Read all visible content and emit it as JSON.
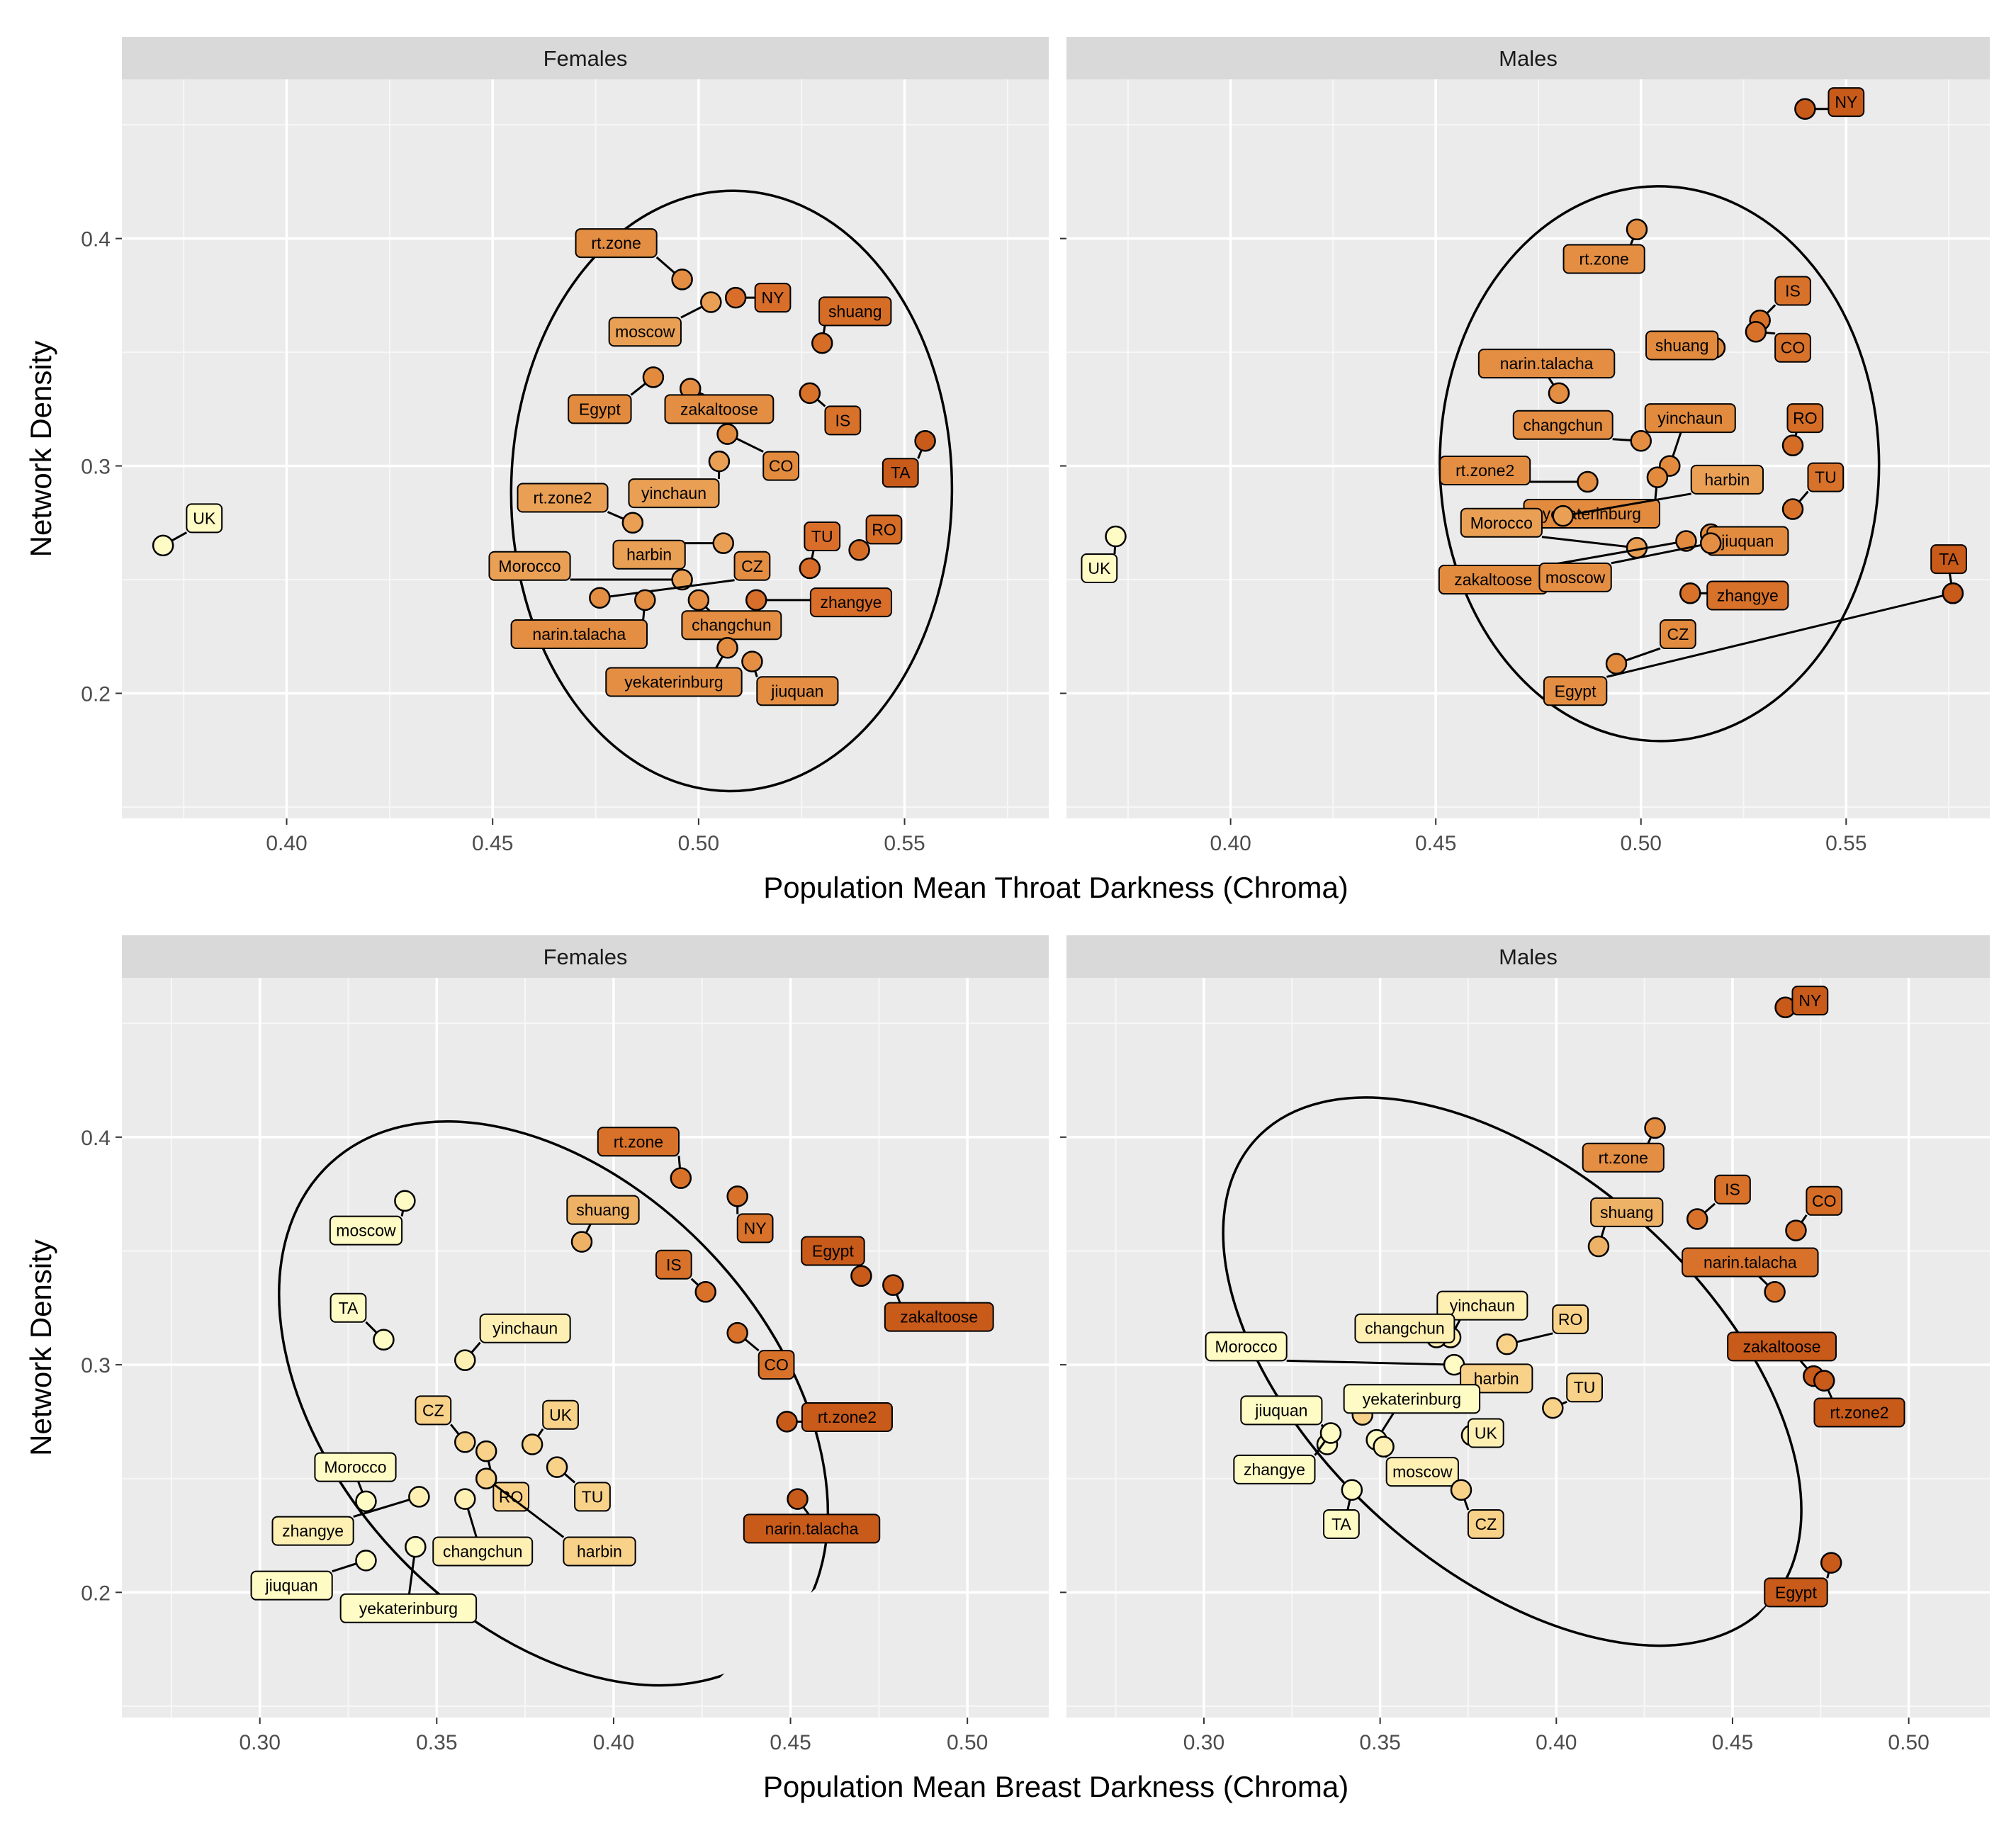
{
  "figure": {
    "rows": [
      {
        "xlabel": "Population Mean Throat Darkness (Chroma)",
        "ylabel": "Network Density"
      },
      {
        "xlabel": "Population Mean Breast Darkness (Chroma)",
        "ylabel": "Network Density"
      }
    ]
  },
  "chart_data": [
    {
      "type": "scatter",
      "strip": "Females",
      "xlabel": "Population Mean Throat Darkness (Chroma)",
      "ylabel": "Network Density",
      "xlim": [
        0.36,
        0.585
      ],
      "ylim": [
        0.145,
        0.47
      ],
      "xticks": [
        {
          "v": 0.4,
          "label": "0.40"
        },
        {
          "v": 0.45,
          "label": "0.45"
        },
        {
          "v": 0.5,
          "label": "0.50"
        },
        {
          "v": 0.55,
          "label": "0.55"
        }
      ],
      "yticks": [
        {
          "v": 0.2,
          "label": "0.2"
        },
        {
          "v": 0.3,
          "label": "0.3"
        },
        {
          "v": 0.4,
          "label": "0.4"
        }
      ],
      "grid": true,
      "ellipse": {
        "cx": 0.508,
        "cy": 0.289,
        "rx": 0.0535,
        "ry": 0.132,
        "angle": -0.6
      },
      "points": [
        {
          "label": "UK",
          "x": 0.37,
          "y": 0.265,
          "color": "#FFFBC5",
          "lx": 0.38,
          "ly": 0.277
        },
        {
          "label": "rt.zone",
          "x": 0.496,
          "y": 0.382,
          "color": "#E38E43",
          "lx": 0.48,
          "ly": 0.398
        },
        {
          "label": "moscow",
          "x": 0.503,
          "y": 0.372,
          "color": "#E9A055",
          "lx": 0.487,
          "ly": 0.359
        },
        {
          "label": "NY",
          "x": 0.509,
          "y": 0.374,
          "color": "#D96E2B",
          "lx": 0.518,
          "ly": 0.374
        },
        {
          "label": "shuang",
          "x": 0.53,
          "y": 0.354,
          "color": "#D56D26",
          "lx": 0.538,
          "ly": 0.368
        },
        {
          "label": "Egypt",
          "x": 0.489,
          "y": 0.339,
          "color": "#E28B3E",
          "lx": 0.476,
          "ly": 0.325
        },
        {
          "label": "zakaltoose",
          "x": 0.498,
          "y": 0.334,
          "color": "#E38E43",
          "lx": 0.505,
          "ly": 0.325
        },
        {
          "label": "IS",
          "x": 0.527,
          "y": 0.332,
          "color": "#D8722A",
          "lx": 0.535,
          "ly": 0.32
        },
        {
          "label": "CO",
          "x": 0.507,
          "y": 0.314,
          "color": "#E28B3E",
          "lx": 0.52,
          "ly": 0.3
        },
        {
          "label": "TA",
          "x": 0.555,
          "y": 0.311,
          "color": "#C85A1A",
          "lx": 0.549,
          "ly": 0.297
        },
        {
          "label": "yinchaun",
          "x": 0.505,
          "y": 0.302,
          "color": "#E9A055",
          "lx": 0.494,
          "ly": 0.288
        },
        {
          "label": "rt.zone2",
          "x": 0.484,
          "y": 0.275,
          "color": "#E9A055",
          "lx": 0.467,
          "ly": 0.286
        },
        {
          "label": "harbin",
          "x": 0.506,
          "y": 0.266,
          "color": "#E9A055",
          "lx": 0.488,
          "ly": 0.261
        },
        {
          "label": "RO",
          "x": 0.539,
          "y": 0.263,
          "color": "#D56D26",
          "lx": 0.545,
          "ly": 0.272
        },
        {
          "label": "TU",
          "x": 0.527,
          "y": 0.255,
          "color": "#D96E2B",
          "lx": 0.53,
          "ly": 0.269
        },
        {
          "label": "Morocco",
          "x": 0.496,
          "y": 0.25,
          "color": "#E9A055",
          "lx": 0.459,
          "ly": 0.256
        },
        {
          "label": "CZ",
          "x": 0.476,
          "y": 0.242,
          "color": "#E38E43",
          "lx": 0.513,
          "ly": 0.256
        },
        {
          "label": "narin.talacha",
          "x": 0.487,
          "y": 0.241,
          "color": "#E38E43",
          "lx": 0.471,
          "ly": 0.226
        },
        {
          "label": "changchun",
          "x": 0.5,
          "y": 0.241,
          "color": "#E38E43",
          "lx": 0.508,
          "ly": 0.23
        },
        {
          "label": "zhangye",
          "x": 0.514,
          "y": 0.241,
          "color": "#D96E2B",
          "lx": 0.537,
          "ly": 0.24
        },
        {
          "label": "yekaterinburg",
          "x": 0.507,
          "y": 0.22,
          "color": "#E38E43",
          "lx": 0.494,
          "ly": 0.205
        },
        {
          "label": "jiuquan",
          "x": 0.513,
          "y": 0.214,
          "color": "#E38E43",
          "lx": 0.524,
          "ly": 0.201
        }
      ]
    },
    {
      "type": "scatter",
      "strip": "Males",
      "xlabel": "Population Mean Throat Darkness (Chroma)",
      "ylabel": "Network Density",
      "xlim": [
        0.36,
        0.585
      ],
      "ylim": [
        0.145,
        0.47
      ],
      "xticks": [
        {
          "v": 0.4,
          "label": "0.40"
        },
        {
          "v": 0.45,
          "label": "0.45"
        },
        {
          "v": 0.5,
          "label": "0.50"
        },
        {
          "v": 0.55,
          "label": "0.55"
        }
      ],
      "yticks": [
        {
          "v": 0.2,
          "label": "0.2"
        },
        {
          "v": 0.3,
          "label": "0.3"
        },
        {
          "v": 0.4,
          "label": "0.4"
        }
      ],
      "grid": true,
      "ellipse": {
        "cx": 0.5045,
        "cy": 0.301,
        "rx": 0.0535,
        "ry": 0.122,
        "angle": 0.5
      },
      "points": [
        {
          "label": "NY",
          "x": 0.54,
          "y": 0.457,
          "color": "#C85A1A",
          "lx": 0.55,
          "ly": 0.46
        },
        {
          "label": "rt.zone",
          "x": 0.499,
          "y": 0.404,
          "color": "#E38E43",
          "lx": 0.491,
          "ly": 0.391
        },
        {
          "label": "IS",
          "x": 0.529,
          "y": 0.364,
          "color": "#D8722A",
          "lx": 0.537,
          "ly": 0.377
        },
        {
          "label": "CO",
          "x": 0.528,
          "y": 0.359,
          "color": "#D8722A",
          "lx": 0.537,
          "ly": 0.352
        },
        {
          "label": "shuang",
          "x": 0.518,
          "y": 0.352,
          "color": "#E28B3E",
          "lx": 0.51,
          "ly": 0.353
        },
        {
          "label": "narin.talacha",
          "x": 0.48,
          "y": 0.332,
          "color": "#E38E43",
          "lx": 0.477,
          "ly": 0.345
        },
        {
          "label": "changchun",
          "x": 0.5,
          "y": 0.311,
          "color": "#E38E43",
          "lx": 0.481,
          "ly": 0.318
        },
        {
          "label": "yinchaun",
          "x": 0.507,
          "y": 0.3,
          "color": "#E28B3E",
          "lx": 0.512,
          "ly": 0.321
        },
        {
          "label": "RO",
          "x": 0.537,
          "y": 0.309,
          "color": "#D56D26",
          "lx": 0.54,
          "ly": 0.321
        },
        {
          "label": "rt.zone2",
          "x": 0.487,
          "y": 0.293,
          "color": "#E38E43",
          "lx": 0.462,
          "ly": 0.298
        },
        {
          "label": "yekaterinburg",
          "x": 0.504,
          "y": 0.295,
          "color": "#E28B3E",
          "lx": 0.488,
          "ly": 0.279
        },
        {
          "label": "harbin",
          "x": 0.481,
          "y": 0.278,
          "color": "#E9A055",
          "lx": 0.521,
          "ly": 0.294
        },
        {
          "label": "TU",
          "x": 0.537,
          "y": 0.281,
          "color": "#D8722A",
          "lx": 0.545,
          "ly": 0.295
        },
        {
          "label": "Morocco",
          "x": 0.499,
          "y": 0.264,
          "color": "#E9A055",
          "lx": 0.466,
          "ly": 0.275
        },
        {
          "label": "jiuquan",
          "x": 0.517,
          "y": 0.27,
          "color": "#E28B3E",
          "lx": 0.526,
          "ly": 0.267
        },
        {
          "label": "zakaltoose",
          "x": 0.511,
          "y": 0.267,
          "color": "#E28B3E",
          "lx": 0.464,
          "ly": 0.25
        },
        {
          "label": "moscow",
          "x": 0.517,
          "y": 0.266,
          "color": "#E38E43",
          "lx": 0.484,
          "ly": 0.251
        },
        {
          "label": "zhangye",
          "x": 0.512,
          "y": 0.244,
          "color": "#D8722A",
          "lx": 0.526,
          "ly": 0.243
        },
        {
          "label": "CZ",
          "x": 0.494,
          "y": 0.213,
          "color": "#E28B3E",
          "lx": 0.509,
          "ly": 0.226
        },
        {
          "label": "Egypt",
          "x": 0.576,
          "y": 0.244,
          "color": "#E38E43",
          "lx": 0.484,
          "ly": 0.201
        },
        {
          "label": "UK",
          "x": 0.372,
          "y": 0.269,
          "color": "#FFFBC5",
          "lx": 0.368,
          "ly": 0.255
        },
        {
          "label": "TA",
          "x": 0.576,
          "y": 0.244,
          "color": "#C85A1A",
          "lx": 0.575,
          "ly": 0.259
        }
      ]
    },
    {
      "type": "scatter",
      "strip": "Females",
      "xlabel": "Population Mean Breast Darkness (Chroma)",
      "ylabel": "Network Density",
      "xlim": [
        0.261,
        0.523
      ],
      "ylim": [
        0.145,
        0.47
      ],
      "xticks": [
        {
          "v": 0.3,
          "label": "0.30"
        },
        {
          "v": 0.35,
          "label": "0.35"
        },
        {
          "v": 0.4,
          "label": "0.40"
        },
        {
          "v": 0.45,
          "label": "0.45"
        },
        {
          "v": 0.5,
          "label": "0.50"
        }
      ],
      "yticks": [
        {
          "v": 0.2,
          "label": "0.2"
        },
        {
          "v": 0.3,
          "label": "0.3"
        },
        {
          "v": 0.4,
          "label": "0.4"
        }
      ],
      "grid": true,
      "ellipse": {
        "cx": 0.383,
        "cy": 0.283,
        "rx": 0.0615,
        "ry": 0.144,
        "angle": 43
      },
      "points": [
        {
          "label": "moscow",
          "x": 0.341,
          "y": 0.372,
          "color": "#FFFBC5",
          "lx": 0.33,
          "ly": 0.359
        },
        {
          "label": "rt.zone",
          "x": 0.419,
          "y": 0.382,
          "color": "#D8722A",
          "lx": 0.407,
          "ly": 0.398
        },
        {
          "label": "shuang",
          "x": 0.391,
          "y": 0.354,
          "color": "#EDB266",
          "lx": 0.397,
          "ly": 0.368
        },
        {
          "label": "NY",
          "x": 0.435,
          "y": 0.374,
          "color": "#D8722A",
          "lx": 0.44,
          "ly": 0.36
        },
        {
          "label": "Egypt",
          "x": 0.47,
          "y": 0.339,
          "color": "#C85A1A",
          "lx": 0.462,
          "ly": 0.35
        },
        {
          "label": "zakaltoose",
          "x": 0.479,
          "y": 0.335,
          "color": "#C85A1A",
          "lx": 0.492,
          "ly": 0.321
        },
        {
          "label": "IS",
          "x": 0.426,
          "y": 0.332,
          "color": "#D8722A",
          "lx": 0.417,
          "ly": 0.344
        },
        {
          "label": "TA",
          "x": 0.335,
          "y": 0.311,
          "color": "#FFFBC5",
          "lx": 0.325,
          "ly": 0.325
        },
        {
          "label": "yinchaun",
          "x": 0.358,
          "y": 0.302,
          "color": "#FEEFB3",
          "lx": 0.375,
          "ly": 0.316
        },
        {
          "label": "CO",
          "x": 0.435,
          "y": 0.314,
          "color": "#D8722A",
          "lx": 0.446,
          "ly": 0.3
        },
        {
          "label": "CZ",
          "x": 0.358,
          "y": 0.266,
          "color": "#F9D28A",
          "lx": 0.349,
          "ly": 0.28
        },
        {
          "label": "UK",
          "x": 0.377,
          "y": 0.265,
          "color": "#F9D28A",
          "lx": 0.385,
          "ly": 0.278
        },
        {
          "label": "rt.zone2",
          "x": 0.449,
          "y": 0.275,
          "color": "#C85A1A",
          "lx": 0.466,
          "ly": 0.277
        },
        {
          "label": "RO",
          "x": 0.364,
          "y": 0.262,
          "color": "#F9D28A",
          "lx": 0.371,
          "ly": 0.242
        },
        {
          "label": "Morocco",
          "x": 0.33,
          "y": 0.24,
          "color": "#FFFBC5",
          "lx": 0.327,
          "ly": 0.255
        },
        {
          "label": "TU",
          "x": 0.384,
          "y": 0.255,
          "color": "#F9D28A",
          "lx": 0.394,
          "ly": 0.242
        },
        {
          "label": "harbin",
          "x": 0.364,
          "y": 0.25,
          "color": "#F9D28A",
          "lx": 0.396,
          "ly": 0.218
        },
        {
          "label": "zhangye",
          "x": 0.345,
          "y": 0.242,
          "color": "#FEEFB3",
          "lx": 0.315,
          "ly": 0.227
        },
        {
          "label": "changchun",
          "x": 0.358,
          "y": 0.241,
          "color": "#FEEFB3",
          "lx": 0.363,
          "ly": 0.218
        },
        {
          "label": "narin.talacha",
          "x": 0.452,
          "y": 0.241,
          "color": "#C85A1A",
          "lx": 0.456,
          "ly": 0.228
        },
        {
          "label": "jiuquan",
          "x": 0.33,
          "y": 0.214,
          "color": "#FFFBC5",
          "lx": 0.309,
          "ly": 0.203
        },
        {
          "label": "yekaterinburg",
          "x": 0.344,
          "y": 0.22,
          "color": "#FFFBC5",
          "lx": 0.342,
          "ly": 0.193
        }
      ]
    },
    {
      "type": "scatter",
      "strip": "Males",
      "xlabel": "Population Mean Breast Darkness (Chroma)",
      "ylabel": "Network Density",
      "xlim": [
        0.261,
        0.523
      ],
      "ylim": [
        0.145,
        0.47
      ],
      "xticks": [
        {
          "v": 0.3,
          "label": "0.30"
        },
        {
          "v": 0.35,
          "label": "0.35"
        },
        {
          "v": 0.4,
          "label": "0.40"
        },
        {
          "v": 0.45,
          "label": "0.45"
        },
        {
          "v": 0.5,
          "label": "0.50"
        }
      ],
      "yticks": [
        {
          "v": 0.2,
          "label": "0.2"
        },
        {
          "v": 0.3,
          "label": "0.3"
        },
        {
          "v": 0.4,
          "label": "0.4"
        }
      ],
      "grid": true,
      "ellipse": {
        "cx": 0.3875,
        "cy": 0.297,
        "rx": 0.056,
        "ry": 0.152,
        "angle": 48
      },
      "points": [
        {
          "label": "NY",
          "x": 0.465,
          "y": 0.457,
          "color": "#C85A1A",
          "lx": 0.472,
          "ly": 0.46
        },
        {
          "label": "rt.zone",
          "x": 0.428,
          "y": 0.404,
          "color": "#E38E43",
          "lx": 0.419,
          "ly": 0.391
        },
        {
          "label": "IS",
          "x": 0.44,
          "y": 0.364,
          "color": "#D8722A",
          "lx": 0.45,
          "ly": 0.377
        },
        {
          "label": "CO",
          "x": 0.468,
          "y": 0.359,
          "color": "#D56D26",
          "lx": 0.476,
          "ly": 0.372
        },
        {
          "label": "shuang",
          "x": 0.412,
          "y": 0.352,
          "color": "#EDB266",
          "lx": 0.42,
          "ly": 0.367
        },
        {
          "label": "narin.talacha",
          "x": 0.462,
          "y": 0.332,
          "color": "#D8722A",
          "lx": 0.455,
          "ly": 0.345
        },
        {
          "label": "yinchaun",
          "x": 0.37,
          "y": 0.312,
          "color": "#FEEFB3",
          "lx": 0.379,
          "ly": 0.326
        },
        {
          "label": "changchun",
          "x": 0.366,
          "y": 0.312,
          "color": "#FEEFB3",
          "lx": 0.357,
          "ly": 0.316
        },
        {
          "label": "RO",
          "x": 0.386,
          "y": 0.309,
          "color": "#F9D28A",
          "lx": 0.404,
          "ly": 0.32
        },
        {
          "label": "Morocco",
          "x": 0.371,
          "y": 0.3,
          "color": "#FFFBC5",
          "lx": 0.312,
          "ly": 0.308
        },
        {
          "label": "zakaltoose",
          "x": 0.473,
          "y": 0.295,
          "color": "#C85A1A",
          "lx": 0.464,
          "ly": 0.308
        },
        {
          "label": "harbin",
          "x": 0.345,
          "y": 0.278,
          "color": "#F9D28A",
          "lx": 0.383,
          "ly": 0.294
        },
        {
          "label": "yekaterinburg",
          "x": 0.349,
          "y": 0.267,
          "color": "#FFFBC5",
          "lx": 0.359,
          "ly": 0.285
        },
        {
          "label": "rt.zone2",
          "x": 0.476,
          "y": 0.293,
          "color": "#C85A1A",
          "lx": 0.486,
          "ly": 0.279
        },
        {
          "label": "TU",
          "x": 0.399,
          "y": 0.281,
          "color": "#F9D28A",
          "lx": 0.408,
          "ly": 0.29
        },
        {
          "label": "jiuquan",
          "x": 0.335,
          "y": 0.265,
          "color": "#FFFBC5",
          "lx": 0.322,
          "ly": 0.28
        },
        {
          "label": "UK",
          "x": 0.376,
          "y": 0.269,
          "color": "#FEEFB3",
          "lx": 0.38,
          "ly": 0.27
        },
        {
          "label": "moscow",
          "x": 0.351,
          "y": 0.264,
          "color": "#FEEFB3",
          "lx": 0.362,
          "ly": 0.253
        },
        {
          "label": "zhangye",
          "x": 0.336,
          "y": 0.27,
          "color": "#FFFBC5",
          "lx": 0.32,
          "ly": 0.254
        },
        {
          "label": "TA",
          "x": 0.342,
          "y": 0.245,
          "color": "#FFFBC5",
          "lx": 0.339,
          "ly": 0.23
        },
        {
          "label": "CZ",
          "x": 0.373,
          "y": 0.245,
          "color": "#F9D28A",
          "lx": 0.38,
          "ly": 0.23
        },
        {
          "label": "Egypt",
          "x": 0.478,
          "y": 0.213,
          "color": "#C85A1A",
          "lx": 0.468,
          "ly": 0.2
        }
      ]
    }
  ]
}
